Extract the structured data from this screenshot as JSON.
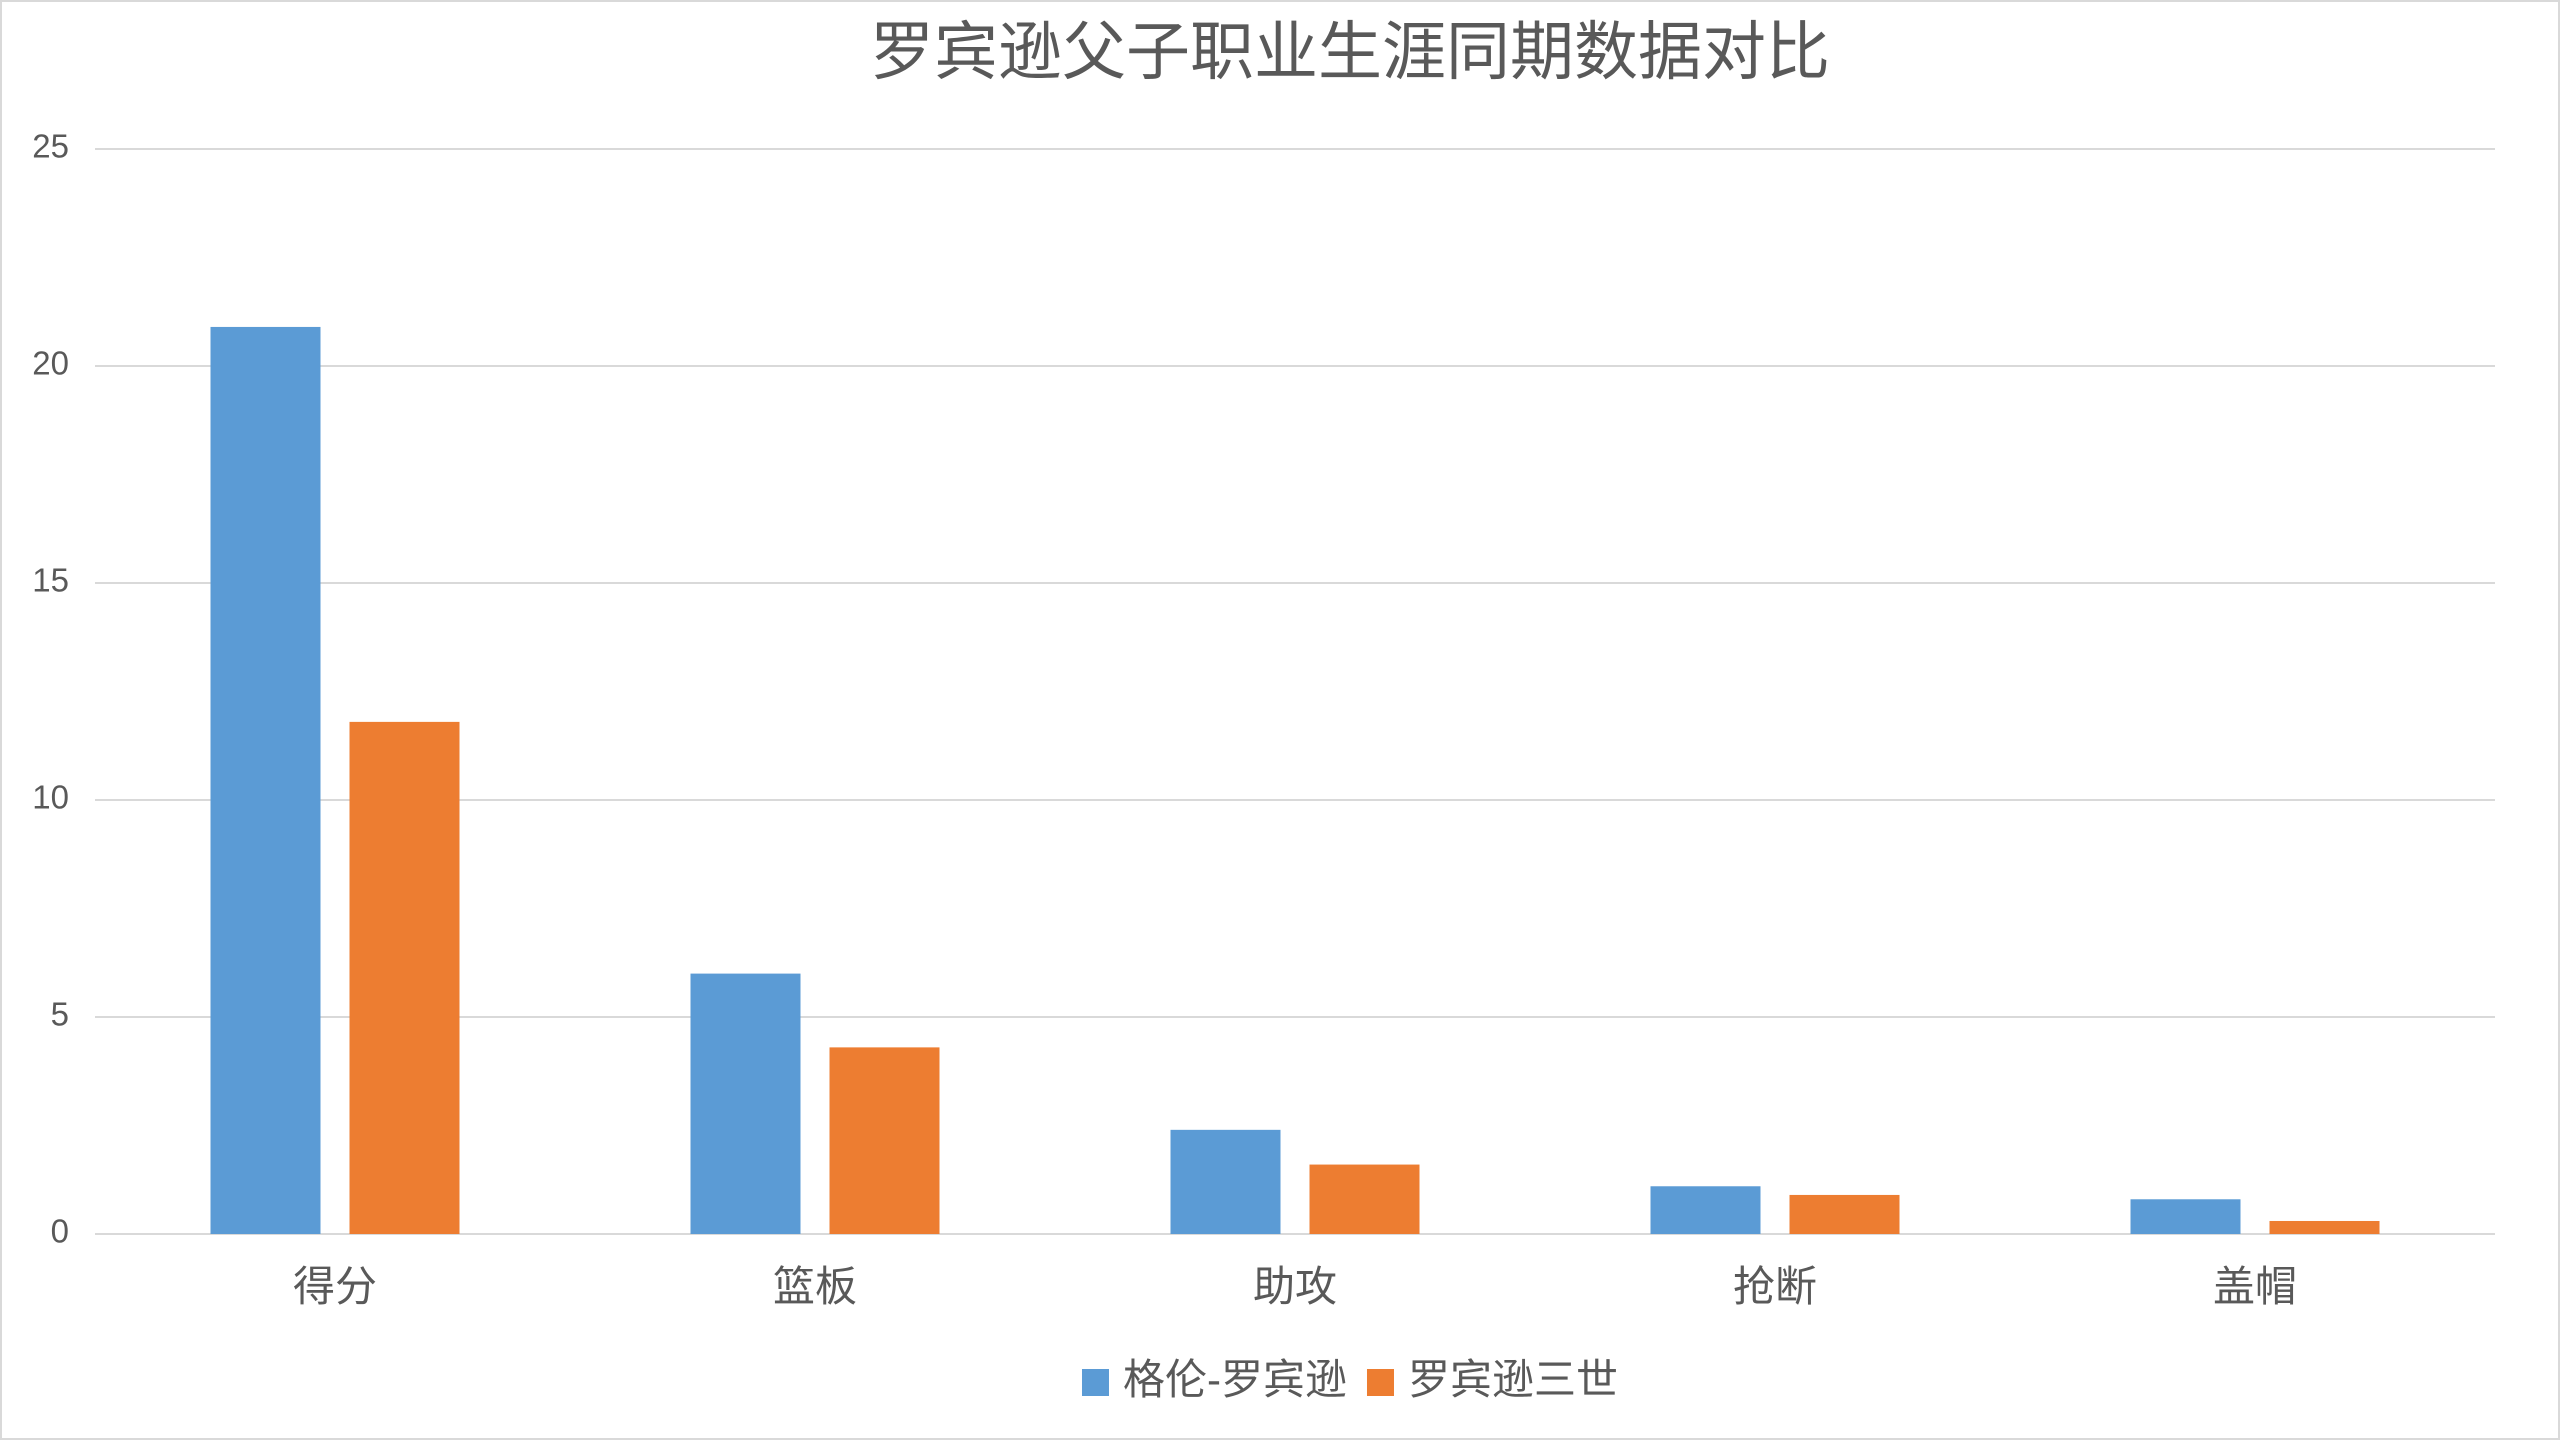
{
  "chart_data": {
    "type": "bar",
    "title": "罗宾逊父子职业生涯同期数据对比",
    "categories": [
      "得分",
      "篮板",
      "助攻",
      "抢断",
      "盖帽"
    ],
    "series": [
      {
        "name": "格伦-罗宾逊",
        "color": "#5b9bd5",
        "values": [
          20.9,
          6.0,
          2.4,
          1.1,
          0.8
        ]
      },
      {
        "name": "罗宾逊三世",
        "color": "#ed7d31",
        "values": [
          11.8,
          4.3,
          1.6,
          0.9,
          0.3
        ]
      }
    ],
    "ylim": [
      0,
      25
    ],
    "yticks": [
      0,
      5,
      10,
      15,
      20,
      25
    ],
    "grid": true
  }
}
